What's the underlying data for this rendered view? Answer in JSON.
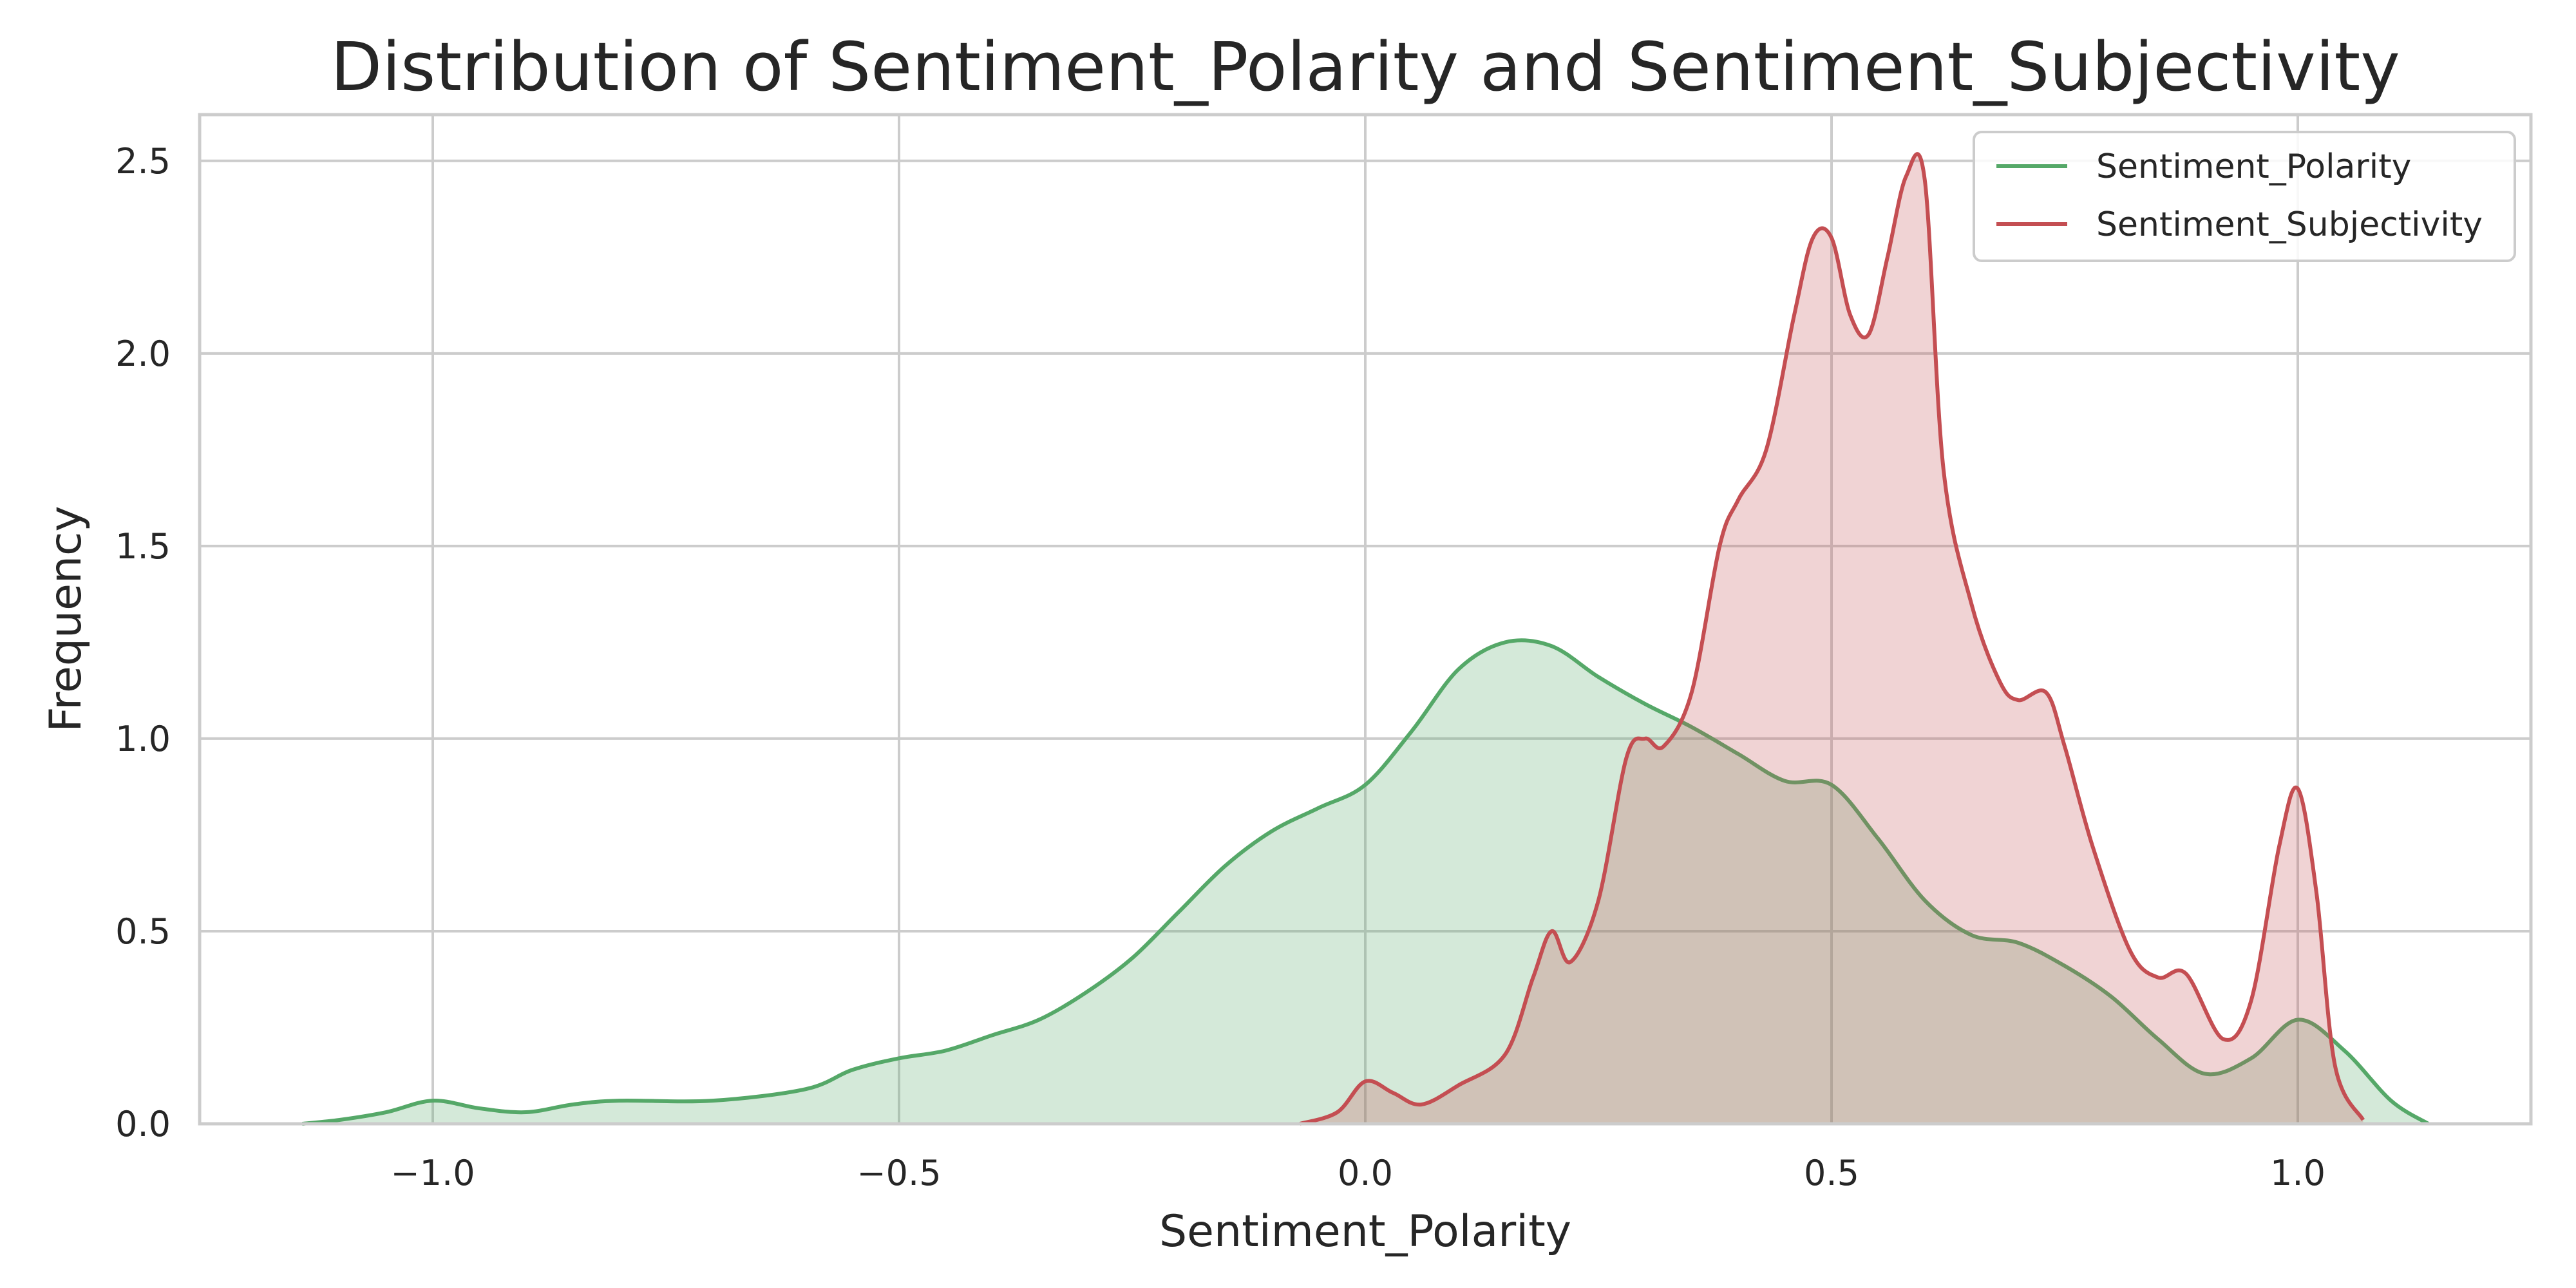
{
  "chart_data": {
    "type": "area",
    "title": "Distribution of Sentiment_Polarity and Sentiment_Subjectivity",
    "xlabel": "Sentiment_Polarity",
    "ylabel": "Frequency",
    "xlim": [
      -1.25,
      1.25
    ],
    "ylim": [
      0,
      2.62
    ],
    "xticks": [
      -1.0,
      -0.5,
      0.0,
      0.5,
      1.0
    ],
    "xtick_labels": [
      "−1.0",
      "−0.5",
      "0.0",
      "0.5",
      "1.0"
    ],
    "yticks": [
      0.0,
      0.5,
      1.0,
      1.5,
      2.0,
      2.5
    ],
    "ytick_labels": [
      "0.0",
      "0.5",
      "1.0",
      "1.5",
      "2.0",
      "2.5"
    ],
    "grid": true,
    "legend_position": "top-right",
    "series": [
      {
        "name": "Sentiment_Polarity",
        "color": "#55a868",
        "fill_opacity": 0.25,
        "x": [
          -1.14,
          -1.1,
          -1.05,
          -1.0,
          -0.95,
          -0.9,
          -0.85,
          -0.8,
          -0.7,
          -0.6,
          -0.55,
          -0.5,
          -0.45,
          -0.4,
          -0.35,
          -0.3,
          -0.25,
          -0.2,
          -0.15,
          -0.1,
          -0.05,
          0.0,
          0.05,
          0.1,
          0.15,
          0.2,
          0.25,
          0.3,
          0.35,
          0.4,
          0.45,
          0.5,
          0.55,
          0.6,
          0.65,
          0.7,
          0.75,
          0.8,
          0.85,
          0.9,
          0.95,
          1.0,
          1.05,
          1.1,
          1.14
        ],
        "y": [
          0.0,
          0.01,
          0.03,
          0.06,
          0.04,
          0.03,
          0.05,
          0.06,
          0.06,
          0.09,
          0.14,
          0.17,
          0.19,
          0.23,
          0.27,
          0.34,
          0.43,
          0.55,
          0.67,
          0.76,
          0.82,
          0.88,
          1.02,
          1.18,
          1.25,
          1.24,
          1.16,
          1.09,
          1.03,
          0.96,
          0.89,
          0.88,
          0.74,
          0.58,
          0.49,
          0.47,
          0.41,
          0.33,
          0.22,
          0.13,
          0.17,
          0.27,
          0.19,
          0.06,
          0.0
        ]
      },
      {
        "name": "Sentiment_Subjectivity",
        "color": "#c44e52",
        "fill_opacity": 0.25,
        "x": [
          -0.07,
          -0.03,
          0.0,
          0.03,
          0.06,
          0.1,
          0.15,
          0.18,
          0.2,
          0.22,
          0.25,
          0.28,
          0.3,
          0.32,
          0.35,
          0.38,
          0.4,
          0.43,
          0.46,
          0.48,
          0.5,
          0.52,
          0.54,
          0.56,
          0.58,
          0.6,
          0.62,
          0.65,
          0.68,
          0.7,
          0.73,
          0.75,
          0.78,
          0.82,
          0.85,
          0.88,
          0.92,
          0.95,
          0.98,
          1.0,
          1.02,
          1.04,
          1.07
        ],
        "y": [
          0.0,
          0.03,
          0.11,
          0.08,
          0.05,
          0.1,
          0.18,
          0.38,
          0.5,
          0.42,
          0.58,
          0.95,
          1.0,
          0.98,
          1.12,
          1.5,
          1.62,
          1.75,
          2.1,
          2.3,
          2.3,
          2.1,
          2.05,
          2.25,
          2.46,
          2.45,
          1.7,
          1.35,
          1.15,
          1.1,
          1.12,
          0.98,
          0.72,
          0.45,
          0.38,
          0.39,
          0.22,
          0.32,
          0.72,
          0.87,
          0.6,
          0.15,
          0.01
        ]
      }
    ]
  }
}
